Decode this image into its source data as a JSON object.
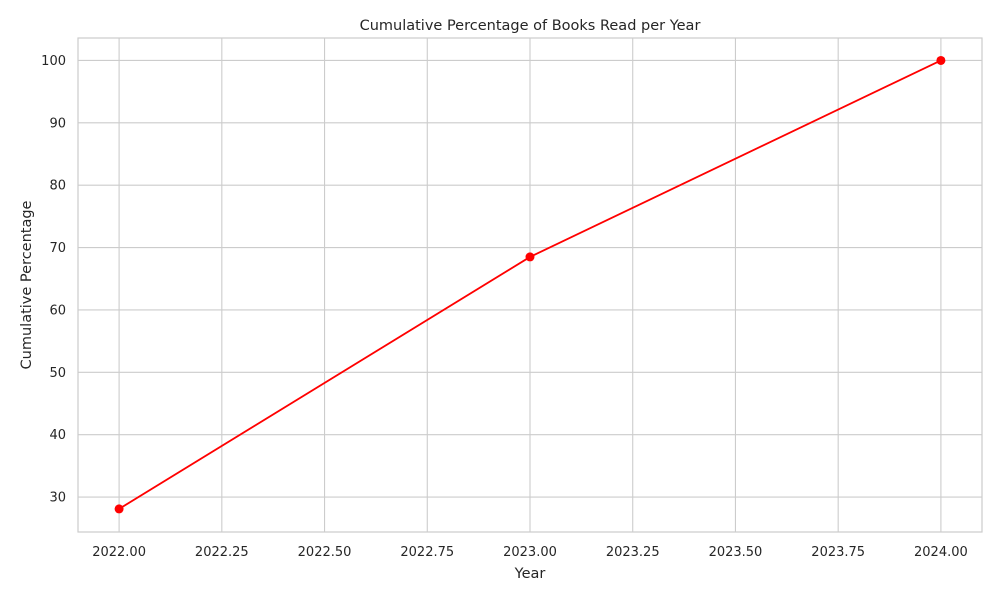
{
  "chart_data": {
    "type": "line",
    "title": "Cumulative Percentage of Books Read per Year",
    "xlabel": "Year",
    "ylabel": "Cumulative Percentage",
    "x": [
      2022,
      2023,
      2024
    ],
    "series": [
      {
        "values": [
          28.1,
          68.5,
          100
        ],
        "color": "#ff0000"
      }
    ],
    "xlim": [
      2021.9,
      2024.1
    ],
    "ylim": [
      24.4,
      103.6
    ],
    "xticks": [
      2022.0,
      2022.25,
      2022.5,
      2022.75,
      2023.0,
      2023.25,
      2023.5,
      2023.75,
      2024.0
    ],
    "xtick_labels": [
      "2022.00",
      "2022.25",
      "2022.50",
      "2022.75",
      "2023.00",
      "2023.25",
      "2023.50",
      "2023.75",
      "2024.00"
    ],
    "yticks": [
      30,
      40,
      50,
      60,
      70,
      80,
      90,
      100
    ],
    "ytick_labels": [
      "30",
      "40",
      "50",
      "60",
      "70",
      "80",
      "90",
      "100"
    ],
    "grid": true,
    "marker": "circle"
  }
}
